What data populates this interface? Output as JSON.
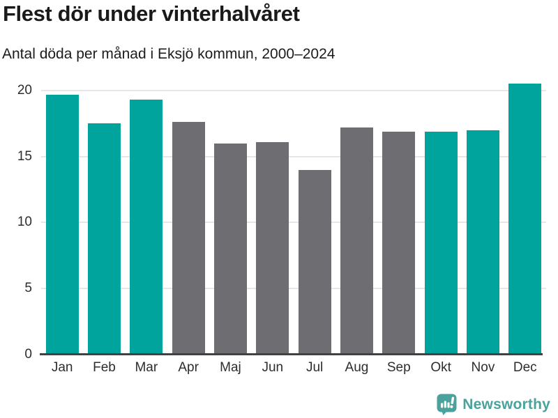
{
  "header": {
    "title": "Flest dör under vinterhalvåret",
    "subtitle": "Antal döda per månad i Eksjö kommun, 2000–2024"
  },
  "footer": {
    "brand": "Newsworthy",
    "logo_icon": "bar-chart-speech-bubble-icon"
  },
  "colors": {
    "highlight": "#00a49c",
    "muted": "#6e6e72",
    "logo_teal": "#4ba19b",
    "gridline": "#e6e6e6",
    "axis": "#414141",
    "title_text": "#1a1a1a",
    "tick_text": "#2d2d2d"
  },
  "chart_data": {
    "type": "bar",
    "title": "Flest dör under vinterhalvåret",
    "subtitle": "Antal döda per månad i Eksjö kommun, 2000–2024",
    "categories": [
      "Jan",
      "Feb",
      "Mar",
      "Apr",
      "Maj",
      "Jun",
      "Jul",
      "Aug",
      "Sep",
      "Okt",
      "Nov",
      "Dec"
    ],
    "values": [
      19.7,
      17.5,
      19.3,
      17.6,
      16.0,
      16.1,
      14.0,
      17.2,
      16.9,
      16.9,
      17.0,
      20.5
    ],
    "bar_colors": [
      "highlight",
      "highlight",
      "highlight",
      "muted",
      "muted",
      "muted",
      "muted",
      "muted",
      "muted",
      "highlight",
      "highlight",
      "highlight"
    ],
    "highlighted_months": [
      "Jan",
      "Feb",
      "Mar",
      "Okt",
      "Nov",
      "Dec"
    ],
    "xlabel": "",
    "ylabel": "",
    "yticks": [
      0,
      5,
      10,
      15,
      20
    ],
    "ylim": [
      0,
      21.05
    ],
    "grid": true,
    "legend": false
  }
}
